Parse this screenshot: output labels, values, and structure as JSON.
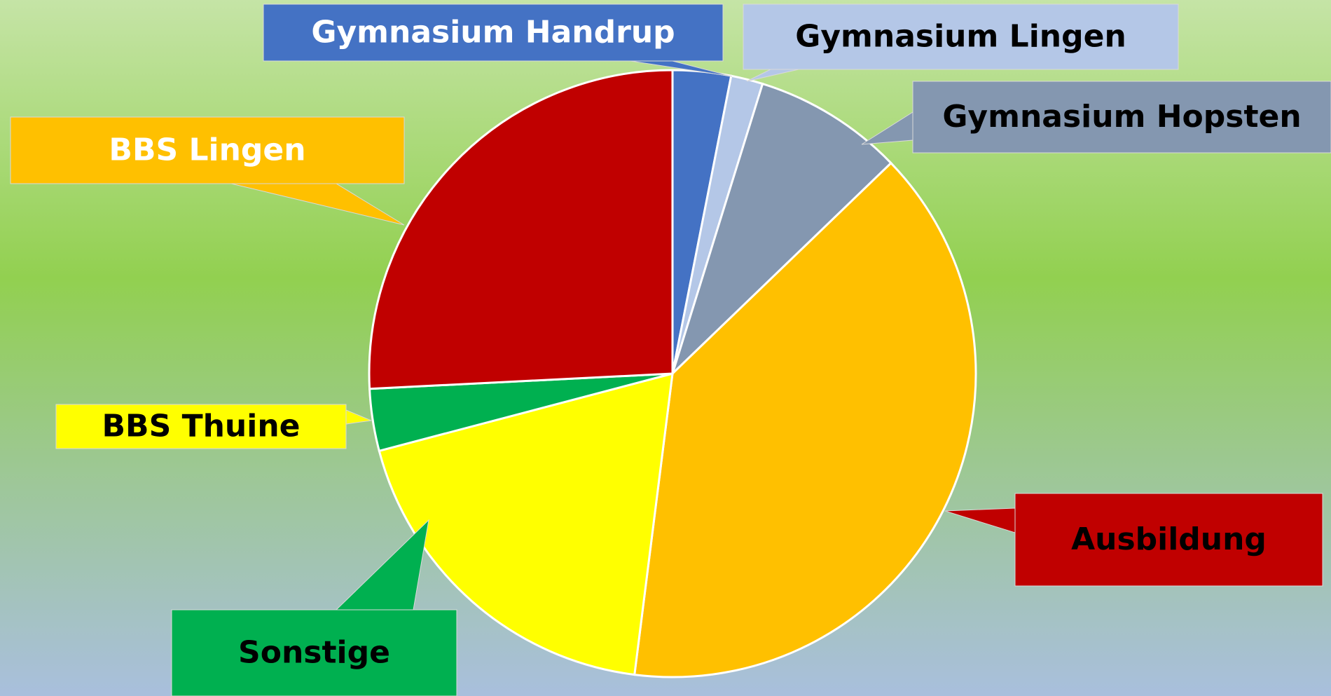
{
  "chart_data": {
    "type": "pie",
    "categories": [
      "Gymnasium Handrup",
      "Gymnasium Lingen",
      "Gymnasium Hopsten",
      "BBS Lingen",
      "BBS Thuine",
      "Sonstige",
      "Ausbildung"
    ],
    "values": [
      3.1,
      1.7,
      8.0,
      39.2,
      18.9,
      3.3,
      25.8
    ],
    "colors": [
      "#4472c4",
      "#b4c7e7",
      "#8497b0",
      "#ffc000",
      "#ffff00",
      "#00b050",
      "#c00000"
    ]
  }
}
